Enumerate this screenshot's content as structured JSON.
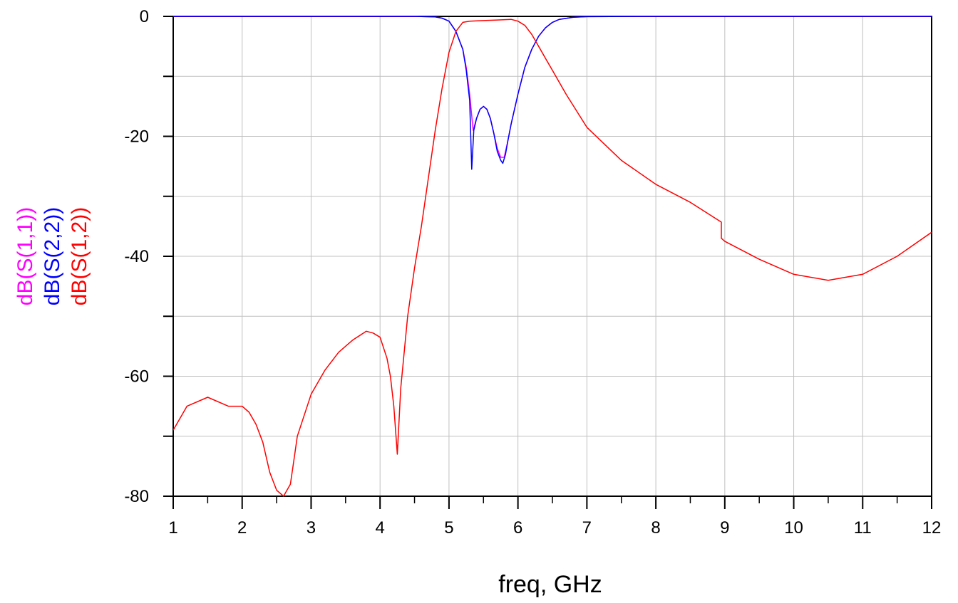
{
  "chart_data": {
    "type": "line",
    "title": "",
    "xlabel": "freq, GHz",
    "ylabel": "",
    "xlim": [
      1,
      12
    ],
    "ylim": [
      -80,
      0
    ],
    "x_ticks": [
      1,
      2,
      3,
      4,
      5,
      6,
      7,
      8,
      9,
      10,
      11,
      12
    ],
    "x_tick_labels": [
      "1",
      "2",
      "3",
      "4",
      "5",
      "6",
      "7",
      "8",
      "9",
      "10",
      "11",
      "12"
    ],
    "y_ticks": [
      0,
      -10,
      -20,
      -30,
      -40,
      -50,
      -60,
      -70,
      -80
    ],
    "y_tick_labels": [
      "0",
      "",
      "-20",
      "",
      "-40",
      "",
      "-60",
      "",
      "-80"
    ],
    "grid": true,
    "legend_placement": "left-vertical",
    "series": [
      {
        "name": "dB(S(1,1))",
        "color": "#ff00ff",
        "x": [
          1,
          3,
          4.5,
          4.8,
          4.9,
          5.0,
          5.1,
          5.2,
          5.25,
          5.3,
          5.35,
          5.4,
          5.45,
          5.5,
          5.55,
          5.6,
          5.65,
          5.7,
          5.75,
          5.8,
          5.85,
          5.9,
          6.0,
          6.1,
          6.2,
          6.3,
          6.4,
          6.5,
          6.6,
          6.8,
          7.0,
          8,
          10,
          12
        ],
        "y": [
          0,
          0,
          0,
          -0.1,
          -0.3,
          -0.8,
          -2.5,
          -5.5,
          -8.5,
          -13,
          -19,
          -17,
          -15.5,
          -15,
          -15.5,
          -17,
          -19.5,
          -22,
          -23.5,
          -23.5,
          -21,
          -18,
          -13,
          -8.5,
          -5.5,
          -3.3,
          -1.9,
          -1.0,
          -0.5,
          -0.15,
          -0.05,
          0,
          0,
          0
        ]
      },
      {
        "name": "dB(S(2,2))",
        "color": "#0000ff",
        "x": [
          1,
          3,
          4.5,
          4.8,
          4.9,
          5.0,
          5.1,
          5.2,
          5.25,
          5.3,
          5.33,
          5.36,
          5.4,
          5.45,
          5.5,
          5.55,
          5.6,
          5.65,
          5.7,
          5.75,
          5.78,
          5.82,
          5.85,
          5.9,
          6.0,
          6.1,
          6.2,
          6.3,
          6.4,
          6.5,
          6.6,
          6.8,
          7.0,
          8,
          10,
          12
        ],
        "y": [
          0,
          0,
          0,
          -0.1,
          -0.3,
          -0.8,
          -2.5,
          -5.5,
          -9,
          -14,
          -25.5,
          -19,
          -17,
          -15.5,
          -15,
          -15.5,
          -17,
          -19.5,
          -22.5,
          -24,
          -24.5,
          -23,
          -21,
          -18,
          -13,
          -8.5,
          -5.5,
          -3.3,
          -1.9,
          -1.0,
          -0.5,
          -0.15,
          -0.05,
          0,
          0,
          0
        ]
      },
      {
        "name": "dB(S(1,2))",
        "color": "#ff0000",
        "x": [
          1,
          1.05,
          1.2,
          1.5,
          1.8,
          2.0,
          2.1,
          2.2,
          2.3,
          2.4,
          2.5,
          2.6,
          2.7,
          2.75,
          2.8,
          3.0,
          3.2,
          3.4,
          3.6,
          3.8,
          3.9,
          4.0,
          4.1,
          4.15,
          4.2,
          4.25,
          4.3,
          4.4,
          4.5,
          4.6,
          4.7,
          4.8,
          4.9,
          5.0,
          5.1,
          5.2,
          5.3,
          5.5,
          5.7,
          5.9,
          6.0,
          6.1,
          6.2,
          6.3,
          6.4,
          6.5,
          6.7,
          7.0,
          7.5,
          8.0,
          8.5,
          8.95,
          8.95,
          9.0,
          9.5,
          10.0,
          10.5,
          11.0,
          11.5,
          12.0
        ],
        "y": [
          -69,
          -68,
          -65,
          -63.5,
          -65,
          -65,
          -66,
          -68,
          -71,
          -76,
          -79,
          -80,
          -78,
          -74,
          -70,
          -63,
          -59,
          -56,
          -54,
          -52.5,
          -52.8,
          -53.5,
          -57,
          -60,
          -65,
          -73,
          -62,
          -50,
          -42,
          -35,
          -27,
          -19,
          -12,
          -6,
          -2.5,
          -1.0,
          -0.8,
          -0.7,
          -0.6,
          -0.5,
          -0.8,
          -1.5,
          -3,
          -5,
          -7,
          -9,
          -13,
          -18.5,
          -24,
          -28,
          -31,
          -34.3,
          -37,
          -37.5,
          -40.5,
          -43,
          -44,
          -43,
          -40,
          -36
        ]
      }
    ]
  }
}
